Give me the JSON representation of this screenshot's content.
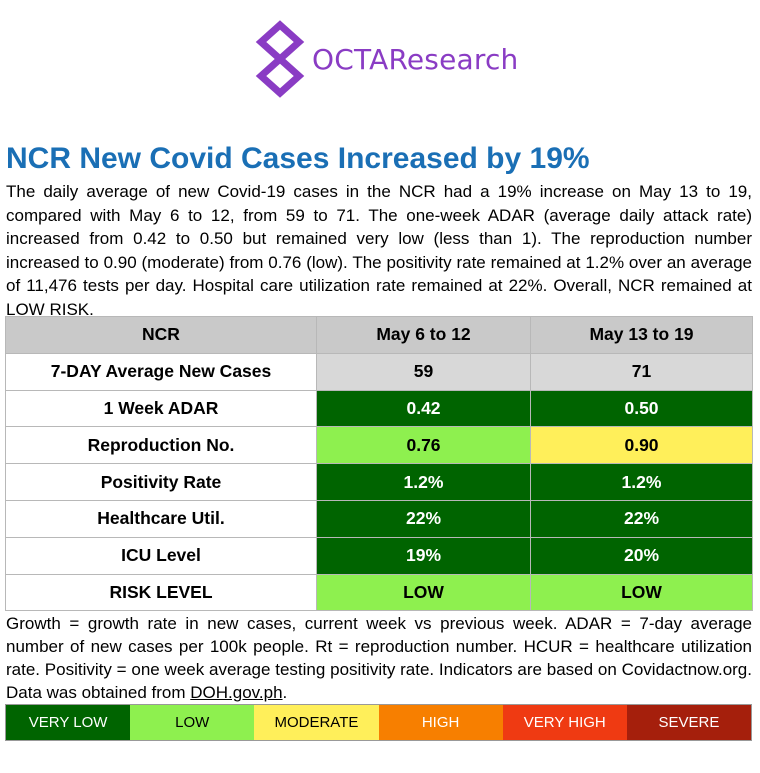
{
  "brand": {
    "name": "OCTAResearch"
  },
  "headline": "NCR New Covid Cases Increased by 19%",
  "summary": "The daily average of new Covid-19 cases in the NCR had a 19% increase on May 13 to 19, compared with May 6 to 12, from 59 to 71. The one-week ADAR (average daily attack rate) increased from 0.42 to 0.50 but remained very low (less than 1). The reproduction number increased to 0.90 (moderate) from 0.76 (low). The positivity rate remained at 1.2% over an average of 11,476 tests per day. Hospital care utilization rate remained at 22%. Overall, NCR remained at LOW RISK.",
  "table": {
    "headers": [
      "NCR",
      "May 6 to 12",
      "May 13 to 19"
    ],
    "rows": [
      {
        "label": "7-DAY Average New Cases",
        "values": [
          "59",
          "71"
        ],
        "levels": [
          "none",
          "none"
        ]
      },
      {
        "label": "1 Week ADAR",
        "values": [
          "0.42",
          "0.50"
        ],
        "levels": [
          "very-low",
          "very-low"
        ]
      },
      {
        "label": "Reproduction No.",
        "values": [
          "0.76",
          "0.90"
        ],
        "levels": [
          "low",
          "moderate"
        ]
      },
      {
        "label": "Positivity Rate",
        "values": [
          "1.2%",
          "1.2%"
        ],
        "levels": [
          "very-low",
          "very-low"
        ]
      },
      {
        "label": "Healthcare Util.",
        "values": [
          "22%",
          "22%"
        ],
        "levels": [
          "very-low",
          "very-low"
        ]
      },
      {
        "label": "ICU Level",
        "values": [
          "19%",
          "20%"
        ],
        "levels": [
          "very-low",
          "very-low"
        ]
      },
      {
        "label": "RISK LEVEL",
        "values": [
          "LOW",
          "LOW"
        ],
        "levels": [
          "low",
          "low"
        ]
      }
    ]
  },
  "notes": {
    "text": "Growth = growth rate in new cases, current week vs previous week. ADAR = 7-day average number of new cases per 100k people. Rt = reproduction number. HCUR = healthcare utilization rate. Positivity = one week average testing positivity rate. Indicators are based on Covidactnow.org. Data was obtained from ",
    "source_link": "DOH.gov.ph",
    "end": "."
  },
  "legend": [
    {
      "label": "VERY LOW",
      "bg": "#006400",
      "fg": "#ffffff"
    },
    {
      "label": "LOW",
      "bg": "#8ef04f",
      "fg": "#000000"
    },
    {
      "label": "MODERATE",
      "bg": "#ffef5a",
      "fg": "#000000"
    },
    {
      "label": "HIGH",
      "bg": "#f77f00",
      "fg": "#ffffff"
    },
    {
      "label": "VERY HIGH",
      "bg": "#ef3a12",
      "fg": "#ffffff"
    },
    {
      "label": "SEVERE",
      "bg": "#a51f0c",
      "fg": "#ffffff"
    }
  ],
  "colors": {
    "headline": "#1a6fb5",
    "brand": "#8a3cc4",
    "header_bg": "#c9c9c9",
    "cases_bg": "#d8d8d8"
  }
}
